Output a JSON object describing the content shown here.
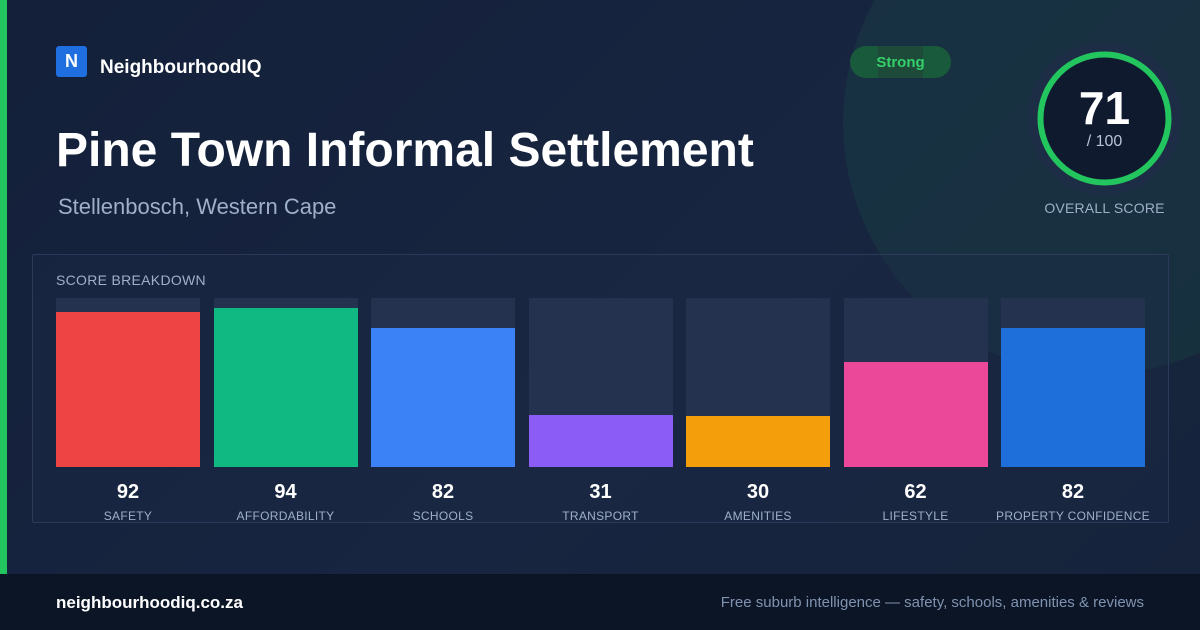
{
  "brand": {
    "logo_letter": "N",
    "name": "NeighbourhoodIQ",
    "accent_color": "#22c55e",
    "logo_color": "#1f6fe0"
  },
  "header": {
    "title": "Pine Town Informal Settlement",
    "subtitle": "Stellenbosch, Western Cape"
  },
  "badge": {
    "label": "Strong",
    "color": "#34d06a"
  },
  "overall_score": {
    "value": "71",
    "max": "/ 100",
    "label": "OVERALL SCORE",
    "fraction": 0.71
  },
  "breakdown": {
    "title": "SCORE BREAKDOWN"
  },
  "chart_data": {
    "type": "bar",
    "categories": [
      "SAFETY",
      "AFFORDABILITY",
      "SCHOOLS",
      "TRANSPORT",
      "AMENITIES",
      "LIFESTYLE",
      "PROPERTY CONFIDENCE"
    ],
    "values": [
      92,
      94,
      82,
      31,
      30,
      62,
      82
    ],
    "ylim": [
      0,
      100
    ],
    "colors": [
      "#ef4444",
      "#10b981",
      "#3b82f6",
      "#8b5cf6",
      "#f59e0b",
      "#ec4899",
      "#1e6fd9"
    ]
  },
  "footer": {
    "url": "neighbourhoodiq.co.za",
    "tagline": "Free suburb intelligence — safety, schools, amenities & reviews"
  }
}
